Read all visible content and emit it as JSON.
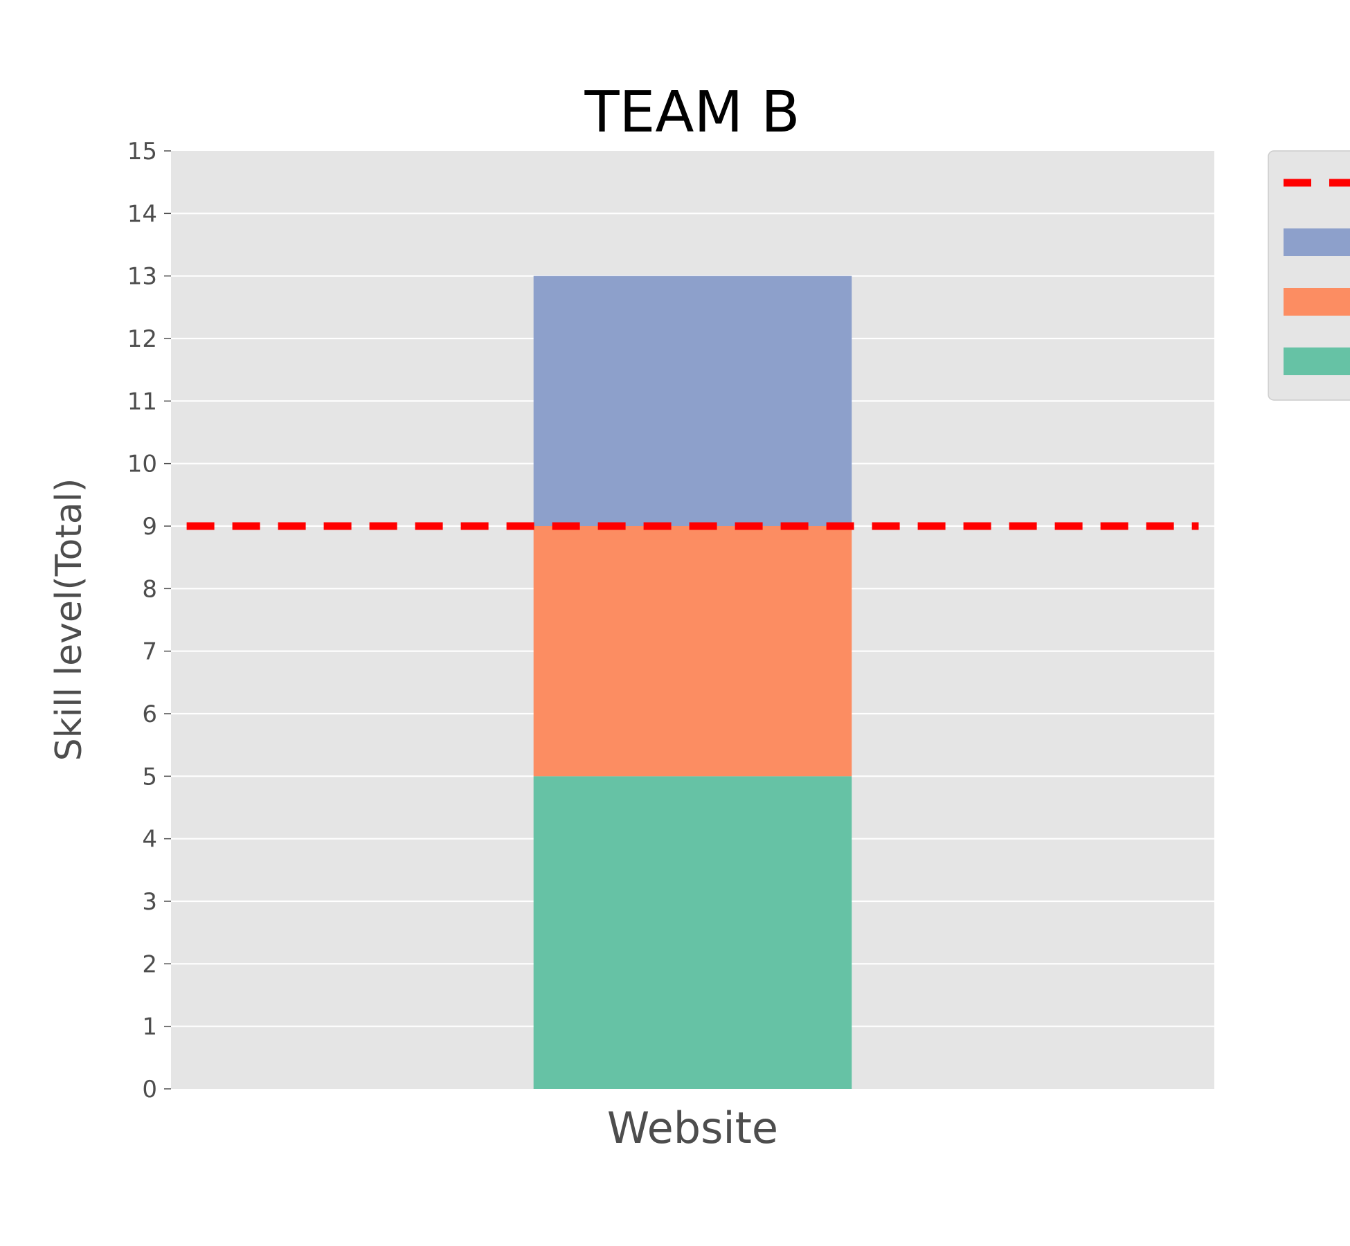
{
  "chart_data": {
    "type": "bar",
    "stacked": true,
    "title": "TEAM B",
    "xlabel": "",
    "ylabel": "Skill level(Total)",
    "categories": [
      "Website"
    ],
    "ylim": [
      0,
      15
    ],
    "yticks": [
      "0",
      "1",
      "2",
      "3",
      "4",
      "5",
      "6",
      "7",
      "8",
      "9",
      "10",
      "11",
      "12",
      "13",
      "14",
      "15"
    ],
    "series": [
      {
        "values": [
          5
        ],
        "color": "#66c2a5"
      },
      {
        "values": [
          4
        ],
        "color": "#fc8d62"
      },
      {
        "values": [
          4
        ],
        "color": "#8da0cb"
      }
    ],
    "reference_line": {
      "value": 9,
      "style": "dashed",
      "color": "#ff0000"
    },
    "grid": "horizontal",
    "background": "#e5e5e5",
    "legend": {
      "placement": "outside-top-right",
      "entries": [
        {
          "kind": "line",
          "color": "#ff0000"
        },
        {
          "kind": "patch",
          "color": "#8da0cb"
        },
        {
          "kind": "patch",
          "color": "#fc8d62"
        },
        {
          "kind": "patch",
          "color": "#66c2a5"
        }
      ]
    }
  }
}
